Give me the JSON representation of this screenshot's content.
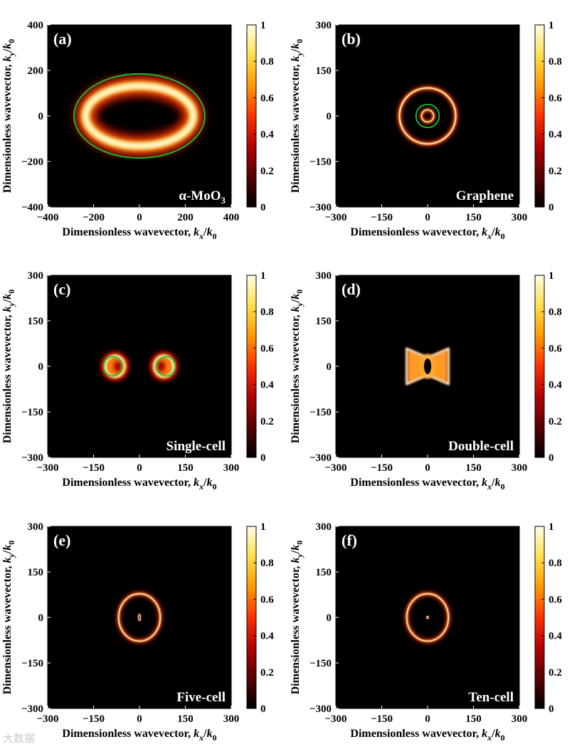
{
  "chart_data": [
    {
      "type": "heatmap",
      "panel_label": "(a)",
      "title": "α-MoO₃",
      "xlabel_main": "Dimensionless wavevector, ",
      "ylabel_main": "Dimensionless wavevector, ",
      "xlim": [
        -400,
        400
      ],
      "ylim": [
        -400,
        400
      ],
      "xticks": [
        -400,
        -200,
        0,
        200,
        400
      ],
      "yticks": [
        -400,
        -200,
        0,
        200,
        400
      ],
      "colorbar": {
        "range": [
          0,
          1
        ],
        "ticks": [
          "0",
          "0.2",
          "0.4",
          "0.6",
          "0.8",
          "1"
        ]
      },
      "features": [
        {
          "shape": "ring",
          "cx": 0,
          "cy": 0,
          "rx": 235,
          "ry": 132,
          "width": 45,
          "intensity": 1.0
        },
        {
          "shape": "contour",
          "color": "#17c43a",
          "rx": 285,
          "ry": 185
        }
      ]
    },
    {
      "type": "heatmap",
      "panel_label": "(b)",
      "title": "Graphene",
      "xlim": [
        -300,
        300
      ],
      "ylim": [
        -300,
        300
      ],
      "xticks": [
        -300,
        -150,
        0,
        150,
        300
      ],
      "yticks": [
        -300,
        -150,
        0,
        150,
        300
      ],
      "colorbar": {
        "range": [
          0,
          1
        ],
        "ticks": [
          "0",
          "0.2",
          "0.4",
          "0.6",
          "0.8",
          "1"
        ]
      },
      "features": [
        {
          "shape": "ring",
          "cx": 0,
          "cy": 0,
          "rx": 92,
          "ry": 92,
          "width": 8,
          "intensity": 1.0
        },
        {
          "shape": "ring",
          "cx": 0,
          "cy": 0,
          "rx": 20,
          "ry": 20,
          "width": 6,
          "intensity": 1.0
        },
        {
          "shape": "contour",
          "color": "#17c43a",
          "rx": 38,
          "ry": 38
        }
      ]
    },
    {
      "type": "heatmap",
      "panel_label": "(c)",
      "title": "Single-cell",
      "xlim": [
        -300,
        300
      ],
      "ylim": [
        -300,
        300
      ],
      "xticks": [
        -300,
        -150,
        0,
        150,
        300
      ],
      "yticks": [
        -300,
        -150,
        0,
        150,
        300
      ],
      "colorbar": {
        "range": [
          0,
          1
        ],
        "ticks": [
          "0",
          "0.2",
          "0.4",
          "0.6",
          "0.8",
          "1"
        ]
      },
      "features": [
        {
          "shape": "lobe",
          "cx": -80,
          "cy": 0,
          "rx": 38,
          "ry": 40,
          "intensity": 1.0
        },
        {
          "shape": "lobe",
          "cx": 80,
          "cy": 0,
          "rx": 38,
          "ry": 40,
          "intensity": 1.0
        },
        {
          "shape": "contour",
          "color": "#17c43a",
          "cx": -87,
          "cy": 0,
          "rx": 30,
          "ry": 32
        },
        {
          "shape": "contour",
          "color": "#17c43a",
          "cx": 87,
          "cy": 0,
          "rx": 30,
          "ry": 32
        }
      ]
    },
    {
      "type": "heatmap",
      "panel_label": "(d)",
      "title": "Double-cell",
      "xlim": [
        -300,
        300
      ],
      "ylim": [
        -300,
        300
      ],
      "xticks": [
        -300,
        -150,
        0,
        150,
        300
      ],
      "yticks": [
        -300,
        -150,
        0,
        150,
        300
      ],
      "colorbar": {
        "range": [
          0,
          1
        ],
        "ticks": [
          "0",
          "0.2",
          "0.4",
          "0.6",
          "0.8",
          "1"
        ]
      },
      "features": [
        {
          "shape": "bowtie",
          "cx": 0,
          "cy": 0,
          "halfwidth": 68,
          "halfheight": 58,
          "intensity": 1.0
        }
      ]
    },
    {
      "type": "heatmap",
      "panel_label": "(e)",
      "title": "Five-cell",
      "xlim": [
        -300,
        300
      ],
      "ylim": [
        -300,
        300
      ],
      "xticks": [
        -300,
        -150,
        0,
        150,
        300
      ],
      "yticks": [
        -300,
        -150,
        0,
        150,
        300
      ],
      "colorbar": {
        "range": [
          0,
          1
        ],
        "ticks": [
          "0",
          "0.2",
          "0.4",
          "0.6",
          "0.8",
          "1"
        ]
      },
      "features": [
        {
          "shape": "ring",
          "cx": 0,
          "cy": 0,
          "rx": 68,
          "ry": 78,
          "width": 7,
          "intensity": 1.0
        },
        {
          "shape": "ring",
          "cx": 0,
          "cy": 0,
          "rx": 4,
          "ry": 10,
          "width": 2,
          "intensity": 0.9
        }
      ]
    },
    {
      "type": "heatmap",
      "panel_label": "(f)",
      "title": "Ten-cell",
      "xlim": [
        -300,
        300
      ],
      "ylim": [
        -300,
        300
      ],
      "xticks": [
        -300,
        -150,
        0,
        150,
        300
      ],
      "yticks": [
        -300,
        -150,
        0,
        150,
        300
      ],
      "colorbar": {
        "range": [
          0,
          1
        ],
        "ticks": [
          "0",
          "0.2",
          "0.4",
          "0.6",
          "0.8",
          "1"
        ]
      },
      "features": [
        {
          "shape": "ring",
          "cx": 0,
          "cy": 0,
          "rx": 68,
          "ry": 78,
          "width": 7,
          "intensity": 1.0
        },
        {
          "shape": "ring",
          "cx": 0,
          "cy": 0,
          "rx": 3,
          "ry": 4,
          "width": 2,
          "intensity": 0.8
        }
      ]
    }
  ],
  "axis_text": {
    "prefix": "Dimensionless wavevector, ",
    "k": "k",
    "x_sub": "x",
    "y_sub": "y",
    "slash": "/",
    "zero_sub": "0"
  },
  "colormap": [
    "#000000",
    "#5a0000",
    "#b20000",
    "#ff3000",
    "#ff9a00",
    "#ffe14a",
    "#ffffe6"
  ],
  "contour_color": "#17c43a",
  "watermark": "大数据"
}
